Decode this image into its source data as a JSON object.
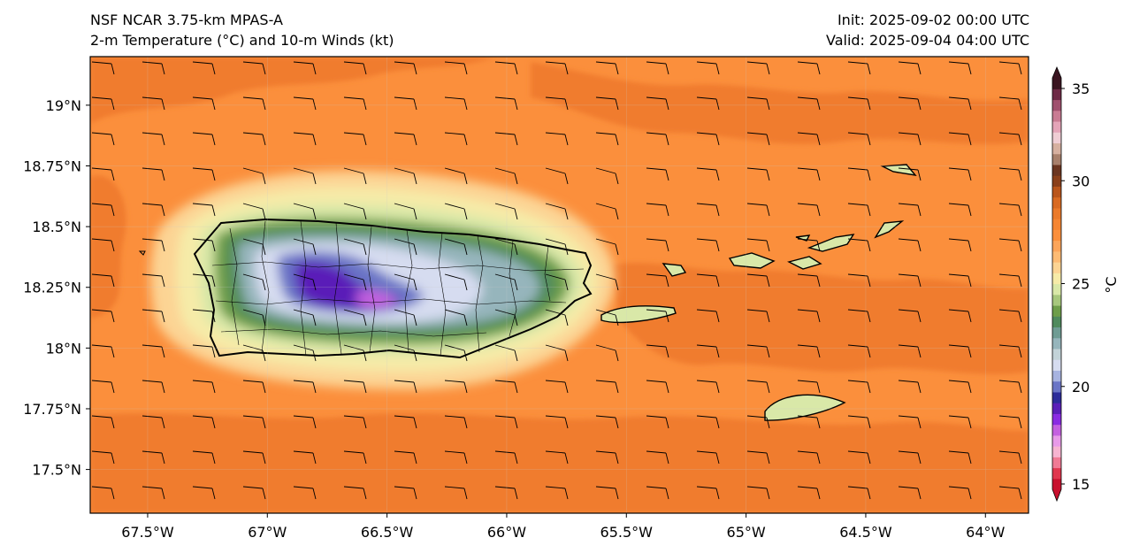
{
  "header": {
    "model": "NSF NCAR 3.75-km MPAS-A",
    "product": "2-m Temperature (°C) and 10-m Winds (kt)",
    "init": "Init: 2025-09-02 00:00 UTC",
    "valid": "Valid: 2025-09-04 04:00 UTC"
  },
  "axes": {
    "lon_ticks": [
      "67.5°W",
      "67°W",
      "66.5°W",
      "66°W",
      "65.5°W",
      "65°W",
      "64.5°W",
      "64°W"
    ],
    "lat_ticks": [
      "19°N",
      "18.75°N",
      "18.5°N",
      "18.25°N",
      "18°N",
      "17.75°N",
      "17.5°N"
    ],
    "lon_range": [
      -67.74,
      -63.82
    ],
    "lat_range": [
      17.32,
      19.2
    ]
  },
  "colorbar": {
    "label": "°C",
    "ticks": [
      "35",
      "30",
      "25",
      "20",
      "15"
    ],
    "range": [
      15,
      35
    ],
    "colors": [
      "#c8102e",
      "#e0364e",
      "#f07a95",
      "#f7b4d1",
      "#e89ae8",
      "#c460e0",
      "#8a2be2",
      "#5a1fb8",
      "#2c2c9a",
      "#6a75c6",
      "#a7b3e0",
      "#d6dcf0",
      "#c3d3d8",
      "#96b5bc",
      "#6f9c94",
      "#4f8a5d",
      "#6e9e4a",
      "#a7c77d",
      "#d9e8a8",
      "#f6eba8",
      "#fcd494",
      "#fdbb74",
      "#fca55a",
      "#fb8f3c",
      "#f58532",
      "#eb7a2a",
      "#d96a22",
      "#b9551b",
      "#8a3f1a",
      "#6b3520",
      "#a8806c",
      "#d6b0a0",
      "#efcdd4",
      "#e4a4b8",
      "#c97b93",
      "#a0506e",
      "#6e2a46",
      "#3a1420"
    ]
  },
  "colors": {
    "ocean": "#fb8f3c",
    "warm_patch": "#f07c2e",
    "coast_line": "#000000"
  }
}
